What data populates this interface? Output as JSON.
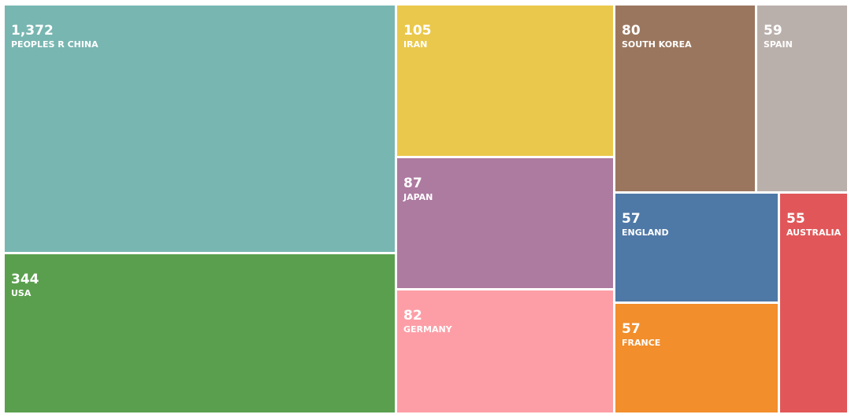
{
  "chart_data": {
    "type": "treemap",
    "categories": [
      "PEOPLES R CHINA",
      "USA",
      "IRAN",
      "JAPAN",
      "GERMANY",
      "SOUTH KOREA",
      "SPAIN",
      "ENGLAND",
      "FRANCE",
      "AUSTRALIA"
    ],
    "values": [
      1372,
      344,
      105,
      87,
      82,
      80,
      59,
      57,
      57,
      55
    ],
    "value_labels": [
      "1,372",
      "344",
      "105",
      "87",
      "82",
      "80",
      "59",
      "57",
      "57",
      "55"
    ],
    "colors": [
      "#78b6b1",
      "#5a9f4d",
      "#eac84b",
      "#ad7aa0",
      "#fd9ea6",
      "#9b765e",
      "#bab0ab",
      "#4e78a6",
      "#f28e2b",
      "#e15759"
    ]
  }
}
